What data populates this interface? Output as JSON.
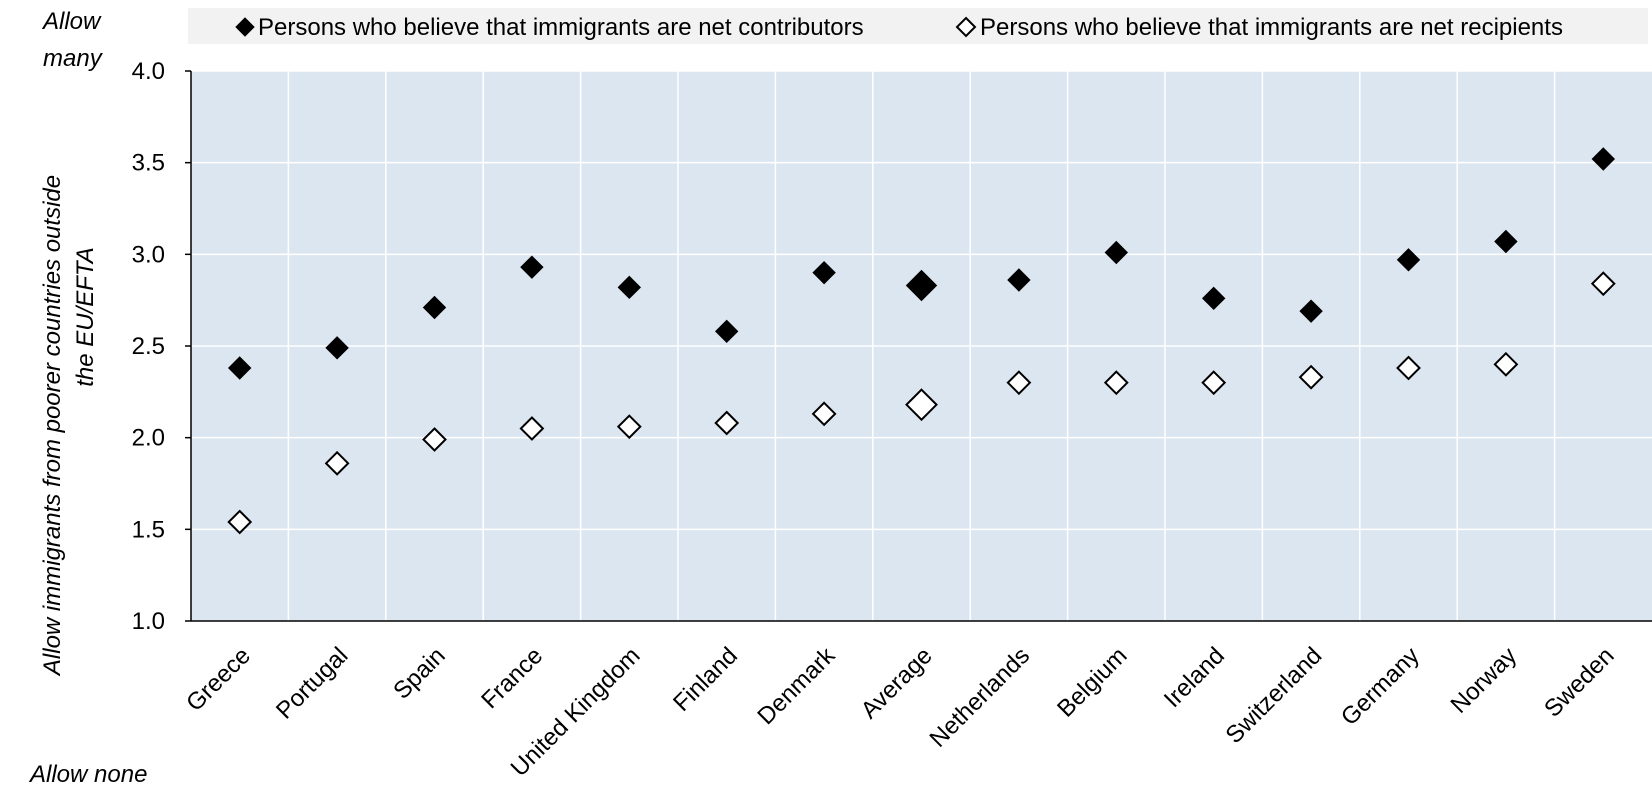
{
  "chart_data": {
    "type": "scatter",
    "title": "",
    "xlabel": "",
    "ylabel_lines": [
      "Allow immigrants from poorer countries outside",
      "the EU/EFTA"
    ],
    "top_note_lines": [
      "Allow",
      "many"
    ],
    "bottom_note": "Allow none",
    "ylim": [
      1.0,
      4.0
    ],
    "y_ticks": [
      "1.0",
      "1.5",
      "2.0",
      "2.5",
      "3.0",
      "3.5",
      "4.0"
    ],
    "grid": true,
    "legend_position": "top",
    "categories": [
      "Greece",
      "Portugal",
      "Spain",
      "France",
      "United Kingdom",
      "Finland",
      "Denmark",
      "Average",
      "Netherlands",
      "Belgium",
      "Ireland",
      "Switzerland",
      "Germany",
      "Norway",
      "Sweden"
    ],
    "highlight_category": "Average",
    "series": [
      {
        "name": "Persons who believe that immigrants are net contributors",
        "marker": "filled-diamond",
        "values": [
          2.38,
          2.49,
          2.71,
          2.93,
          2.82,
          2.58,
          2.9,
          2.83,
          2.86,
          3.01,
          2.76,
          2.69,
          2.97,
          3.07,
          3.52
        ]
      },
      {
        "name": "Persons who believe that immigrants are net recipients",
        "marker": "hollow-diamond",
        "values": [
          1.54,
          1.86,
          1.99,
          2.05,
          2.06,
          2.08,
          2.13,
          2.18,
          2.3,
          2.3,
          2.3,
          2.33,
          2.38,
          2.4,
          2.84
        ]
      }
    ],
    "colors": {
      "plot_background": "#dce6f1",
      "legend_background": "#f2f2f2",
      "grid": "#ffffff",
      "marker": "#000000"
    }
  }
}
